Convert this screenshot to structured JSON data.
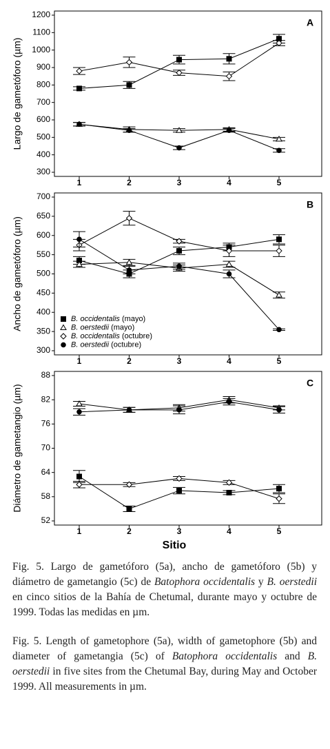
{
  "chart_data": [
    {
      "type": "line",
      "panel": "A",
      "ylabel": "Largo de gametóforo (µm)",
      "categories": [
        "1",
        "2",
        "3",
        "4",
        "5"
      ],
      "ylim": [
        300,
        1200
      ],
      "yticks": [
        300,
        400,
        500,
        600,
        700,
        800,
        900,
        1000,
        1100,
        1200
      ],
      "series": [
        {
          "marker": "square",
          "color": "#000000",
          "values": [
            780,
            800,
            945,
            950,
            1065
          ],
          "errors": [
            10,
            20,
            25,
            30,
            25
          ]
        },
        {
          "marker": "triangle",
          "color": "#000000",
          "values": [
            575,
            545,
            540,
            545,
            490
          ],
          "errors": [
            10,
            15,
            10,
            10,
            10
          ]
        },
        {
          "marker": "diamond",
          "color": "#000000",
          "values": [
            880,
            930,
            870,
            850,
            1040
          ],
          "errors": [
            20,
            30,
            15,
            25,
            15
          ]
        },
        {
          "marker": "circle",
          "color": "#000000",
          "values": [
            575,
            540,
            440,
            540,
            425
          ],
          "errors": [
            10,
            10,
            10,
            10,
            10
          ]
        }
      ]
    },
    {
      "type": "line",
      "panel": "B",
      "ylabel": "Ancho de gametóforo (µm)",
      "categories": [
        "1",
        "2",
        "3",
        "4",
        "5"
      ],
      "ylim": [
        300,
        700
      ],
      "yticks": [
        300,
        350,
        400,
        450,
        500,
        550,
        600,
        650,
        700
      ],
      "series": [
        {
          "name": "B. occidentalis (mayo)",
          "marker": "square",
          "color": "#000000",
          "values": [
            535,
            500,
            560,
            570,
            590
          ],
          "errors": [
            10,
            10,
            10,
            10,
            12
          ]
        },
        {
          "name": "B. oerstedii (mayo)",
          "marker": "triangle",
          "color": "#000000",
          "values": [
            525,
            530,
            515,
            525,
            445
          ],
          "errors": [
            8,
            8,
            8,
            8,
            8
          ]
        },
        {
          "name": "B. occidentalis (octubre)",
          "marker": "diamond",
          "color": "#000000",
          "values": [
            575,
            645,
            585,
            560,
            560
          ],
          "errors": [
            15,
            18,
            5,
            15,
            15
          ]
        },
        {
          "name": "B. oerstedii (octubre)",
          "marker": "circle",
          "color": "#000000",
          "values": [
            590,
            510,
            520,
            500,
            355
          ],
          "errors": [
            20,
            10,
            8,
            10,
            2
          ]
        }
      ]
    },
    {
      "type": "line",
      "panel": "C",
      "ylabel": "Diámetro de gametangio (µm)",
      "xlabel": "Sitio",
      "categories": [
        "1",
        "2",
        "3",
        "4",
        "5"
      ],
      "ylim": [
        52,
        88
      ],
      "yticks": [
        52,
        58,
        64,
        70,
        76,
        82,
        88
      ],
      "series": [
        {
          "marker": "square",
          "color": "#000000",
          "values": [
            63,
            55,
            59.5,
            59,
            60
          ],
          "errors": [
            1.5,
            0.7,
            0.8,
            0.5,
            1
          ]
        },
        {
          "marker": "triangle",
          "color": "#000000",
          "values": [
            81,
            79.5,
            80,
            82,
            80
          ],
          "errors": [
            0.6,
            0.6,
            0.8,
            0.8,
            0.5
          ]
        },
        {
          "marker": "diamond",
          "color": "#000000",
          "values": [
            61,
            61,
            62.5,
            61.5,
            57.5
          ],
          "errors": [
            0.8,
            0.5,
            0.5,
            0.5,
            1.2
          ]
        },
        {
          "marker": "circle",
          "color": "#000000",
          "values": [
            79,
            79.5,
            79.5,
            81.5,
            79.5
          ],
          "errors": [
            0.8,
            0.6,
            1,
            0.8,
            0.8
          ]
        }
      ]
    }
  ],
  "caption": {
    "paragraphs": [
      [
        {
          "text": "Fig. 5. Largo de gametóforo (5a), ancho de gametóforo (5b) y diámetro de gametangio (5c) de ",
          "italic": false
        },
        {
          "text": "Batophora occidentalis",
          "italic": true
        },
        {
          "text": " y ",
          "italic": false
        },
        {
          "text": "B. oerstedii",
          "italic": true
        },
        {
          "text": " en cinco sitios de la Bahía de Chetumal, durante mayo y octubre de 1999. Todas las medidas en µm.",
          "italic": false
        }
      ],
      [
        {
          "text": "Fig. 5. Length of gametophore (5a), width of gametophore (5b) and diameter of gametangia (5c) of ",
          "italic": false
        },
        {
          "text": "Batophora occidentalis",
          "italic": true
        },
        {
          "text": " and ",
          "italic": false
        },
        {
          "text": "B. oerstedii",
          "italic": true
        },
        {
          "text": " in five sites from the Chetumal Bay, during May and October 1999. All measurements in µm.",
          "italic": false
        }
      ]
    ]
  }
}
